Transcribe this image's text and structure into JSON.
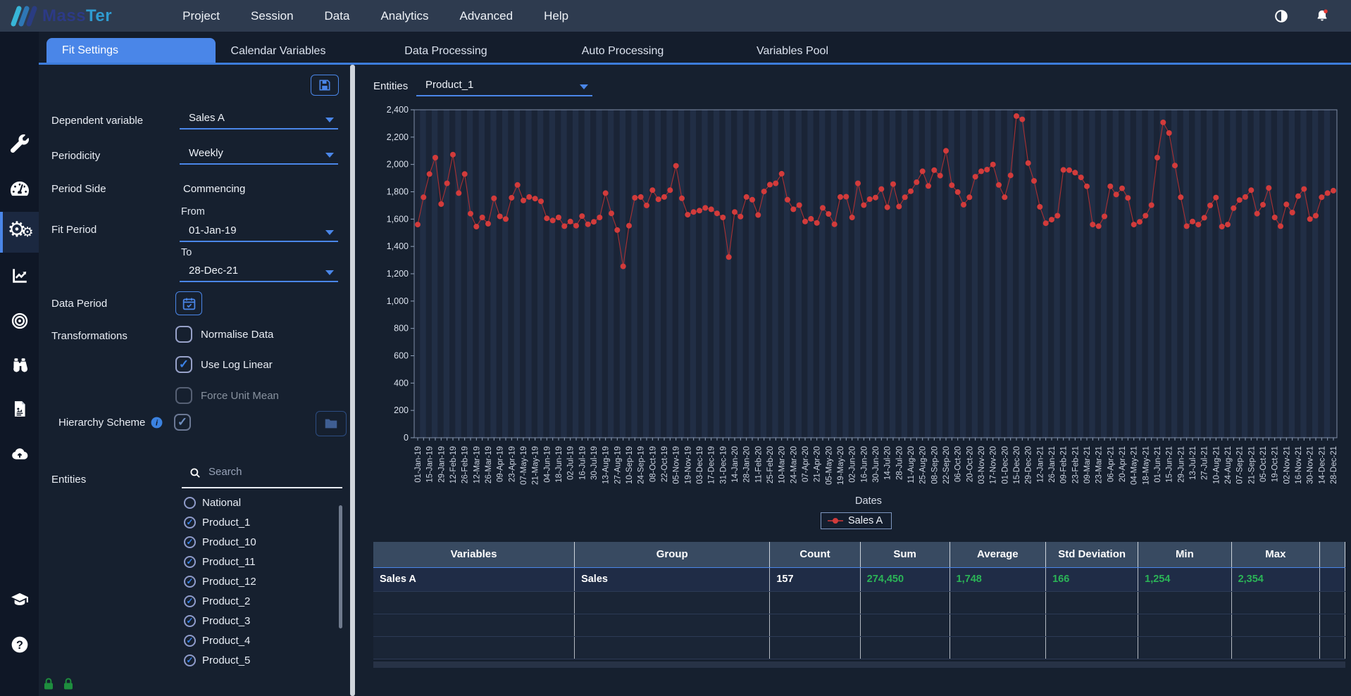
{
  "navbar": {
    "logo_mass": "Mass",
    "logo_ter": "Ter",
    "menu": [
      "Project",
      "Session",
      "Data",
      "Analytics",
      "Advanced",
      "Help"
    ]
  },
  "tabs": {
    "active": "Fit Settings",
    "inactive": [
      "Calendar Variables",
      "Data Processing",
      "Auto Processing",
      "Variables Pool"
    ]
  },
  "sidebar": {
    "active_icon": "gears",
    "icons": [
      "wrench",
      "gauge",
      "gears",
      "line-chart",
      "target",
      "binoculars",
      "report",
      "cloud-upload"
    ],
    "bottom_icons": [
      "graduation-cap",
      "help"
    ],
    "footer_icons": [
      "lock",
      "lock"
    ]
  },
  "fit_panel": {
    "dependent_variable": {
      "label": "Dependent variable",
      "value": "Sales A"
    },
    "periodicity": {
      "label": "Periodicity",
      "value": "Weekly"
    },
    "period_side": {
      "label": "Period Side",
      "value": "Commencing"
    },
    "fit_period": {
      "label": "Fit Period",
      "from_label": "From",
      "from_value": "01-Jan-19",
      "to_label": "To",
      "to_value": "28-Dec-21"
    },
    "data_period": {
      "label": "Data Period"
    },
    "transformations": {
      "label": "Transformations",
      "options": [
        {
          "label": "Normalise Data",
          "checked": false,
          "disabled": false
        },
        {
          "label": "Use Log Linear",
          "checked": true,
          "disabled": false
        },
        {
          "label": "Force Unit Mean",
          "checked": false,
          "disabled": true
        }
      ]
    },
    "hierarchy_scheme": {
      "label": "Hierarchy Scheme",
      "checked": true,
      "disabled": true
    },
    "entities": {
      "label": "Entities",
      "search_placeholder": "Search",
      "items": [
        {
          "label": "National",
          "checked": false
        },
        {
          "label": "Product_1",
          "checked": true
        },
        {
          "label": "Product_10",
          "checked": true
        },
        {
          "label": "Product_11",
          "checked": true
        },
        {
          "label": "Product_12",
          "checked": true
        },
        {
          "label": "Product_2",
          "checked": true
        },
        {
          "label": "Product_3",
          "checked": true
        },
        {
          "label": "Product_4",
          "checked": true
        },
        {
          "label": "Product_5",
          "checked": true
        }
      ]
    }
  },
  "chart_panel": {
    "entities_label": "Entities",
    "entities_value": "Product_1",
    "dates_label": "Dates",
    "legend_label": "Sales A"
  },
  "chart_data": {
    "type": "line",
    "title": "",
    "xlabel": "Dates",
    "ylabel": "",
    "ylim": [
      0,
      2400
    ],
    "y_tick_step": 200,
    "y_tick_labels": [
      "0",
      "200",
      "400",
      "600",
      "800",
      "1,000",
      "1,200",
      "1,400",
      "1,600",
      "1,800",
      "2,000",
      "2,200",
      "2,400"
    ],
    "grid": "striped-vertical",
    "legend_position": "bottom",
    "x_tick_labels": [
      "01-Jan-19",
      "15-Jan-19",
      "29-Jan-19",
      "12-Feb-19",
      "26-Feb-19",
      "12-Mar-19",
      "26-Mar-19",
      "09-Apr-19",
      "23-Apr-19",
      "07-May-19",
      "21-May-19",
      "04-Jun-19",
      "18-Jun-19",
      "02-Jul-19",
      "16-Jul-19",
      "30-Jul-19",
      "13-Aug-19",
      "27-Aug-19",
      "10-Sep-19",
      "24-Sep-19",
      "08-Oct-19",
      "22-Oct-19",
      "05-Nov-19",
      "19-Nov-19",
      "03-Dec-19",
      "17-Dec-19",
      "31-Dec-19",
      "14-Jan-20",
      "28-Jan-20",
      "11-Feb-20",
      "25-Feb-20",
      "10-Mar-20",
      "24-Mar-20",
      "07-Apr-20",
      "21-Apr-20",
      "05-May-20",
      "19-May-20",
      "02-Jun-20",
      "16-Jun-20",
      "30-Jun-20",
      "14-Jul-20",
      "28-Jul-20",
      "11-Aug-20",
      "25-Aug-20",
      "08-Sep-20",
      "22-Sep-20",
      "06-Oct-20",
      "20-Oct-20",
      "03-Nov-20",
      "17-Nov-20",
      "01-Dec-20",
      "15-Dec-20",
      "29-Dec-20",
      "12-Jan-21",
      "26-Jan-21",
      "09-Feb-21",
      "23-Feb-21",
      "09-Mar-21",
      "23-Mar-21",
      "06-Apr-21",
      "20-Apr-21",
      "04-May-21",
      "18-May-21",
      "01-Jun-21",
      "15-Jun-21",
      "29-Jun-21",
      "13-Jul-21",
      "27-Jul-21",
      "10-Aug-21",
      "24-Aug-21",
      "07-Sep-21",
      "21-Sep-21",
      "05-Oct-21",
      "19-Oct-21",
      "02-Nov-21",
      "16-Nov-21",
      "30-Nov-21",
      "14-Dec-21",
      "28-Dec-21"
    ],
    "series": [
      {
        "name": "Sales A",
        "color": "#d23b3b",
        "values": [
          1560,
          1760,
          1930,
          2050,
          1710,
          1862,
          2072,
          1790,
          1930,
          1640,
          1545,
          1612,
          1566,
          1752,
          1620,
          1600,
          1756,
          1850,
          1736,
          1762,
          1750,
          1730,
          1606,
          1590,
          1612,
          1548,
          1582,
          1552,
          1622,
          1562,
          1580,
          1612,
          1790,
          1642,
          1520,
          1254,
          1552,
          1756,
          1762,
          1700,
          1812,
          1745,
          1762,
          1812,
          1990,
          1752,
          1632,
          1652,
          1662,
          1682,
          1672,
          1642,
          1612,
          1322,
          1652,
          1618,
          1762,
          1742,
          1630,
          1802,
          1852,
          1862,
          1932,
          1742,
          1672,
          1702,
          1582,
          1602,
          1572,
          1682,
          1638,
          1562,
          1762,
          1764,
          1612,
          1862,
          1702,
          1746,
          1758,
          1820,
          1686,
          1856,
          1692,
          1760,
          1804,
          1870,
          1950,
          1842,
          1958,
          1918,
          2100,
          1848,
          1798,
          1705,
          1760,
          1910,
          1950,
          1962,
          2000,
          1850,
          1760,
          1920,
          2354,
          2330,
          2010,
          1880,
          1690,
          1570,
          1596,
          1625,
          1960,
          1958,
          1940,
          1905,
          1840,
          1560,
          1548,
          1620,
          1840,
          1780,
          1825,
          1755,
          1560,
          1580,
          1625,
          1702,
          2050,
          2308,
          2230,
          1992,
          1760,
          1548,
          1582,
          1560,
          1610,
          1700,
          1758,
          1545,
          1560,
          1680,
          1740,
          1762,
          1812,
          1640,
          1705,
          1828,
          1612,
          1548,
          1708,
          1648,
          1768,
          1820,
          1600,
          1625,
          1760,
          1790,
          1808
        ]
      }
    ]
  },
  "table": {
    "headers": [
      "Variables",
      "Group",
      "Count",
      "Sum",
      "Average",
      "Std Deviation",
      "Min",
      "Max",
      ""
    ],
    "col_widths_pct": [
      20.7,
      20.1,
      9.3,
      9.2,
      9.9,
      9.5,
      9.6,
      9.1,
      2.6
    ],
    "rows": [
      {
        "cells": [
          "Sales A",
          "Sales",
          "157",
          "274,450",
          "1,748",
          "166",
          "1,254",
          "2,354",
          ""
        ],
        "green_from": 3
      }
    ],
    "empty_row_count": 3
  },
  "colors": {
    "accent": "#4a86e8",
    "series_red": "#d23b3b",
    "stat_green": "#2bb457",
    "navbar_bg": "#2e3b4f",
    "panel_bg": "#16202f",
    "sidebar_bg": "#0f1726",
    "plot_stripe_dark": "#1a2436",
    "plot_stripe_light": "#212e45"
  }
}
